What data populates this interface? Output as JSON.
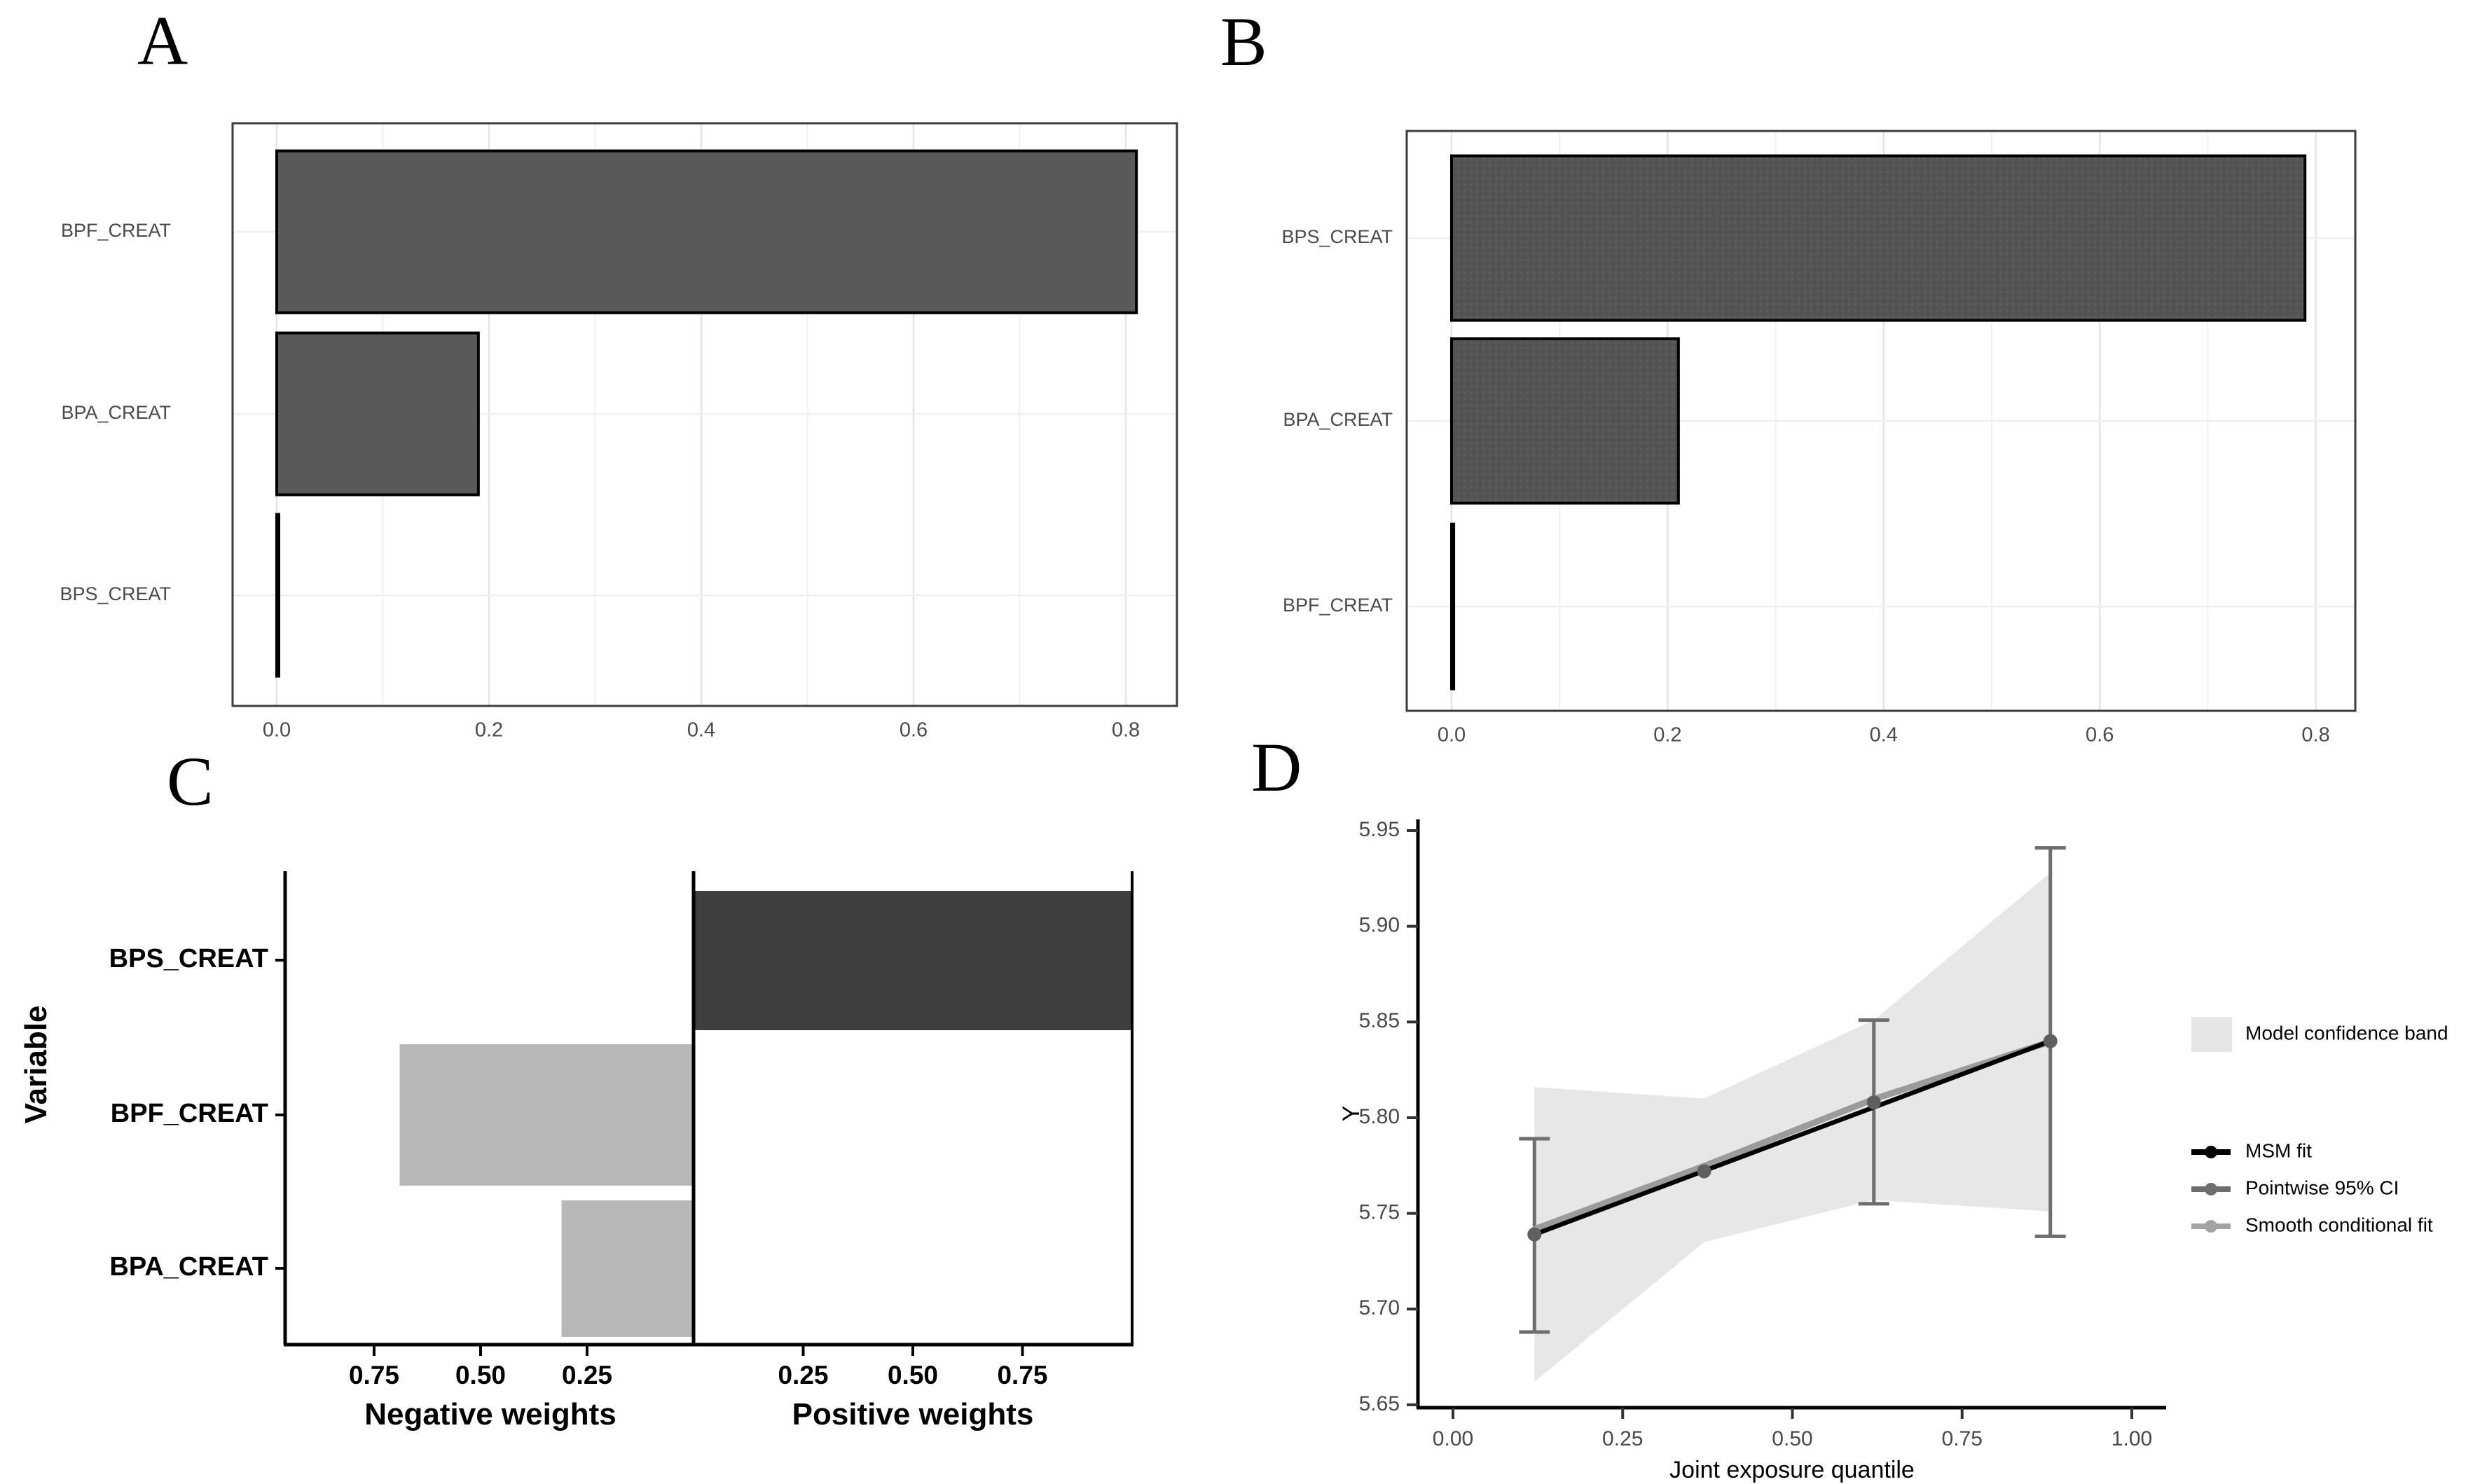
{
  "chart_data": [
    {
      "letter": "A",
      "type": "bar",
      "orientation": "horizontal",
      "categories": [
        "BPF_CREAT",
        "BPA_CREAT",
        "BPS_CREAT"
      ],
      "values": [
        0.81,
        0.19,
        0.002
      ],
      "xtick_labels": [
        "0.0",
        "0.2",
        "0.4",
        "0.6",
        "0.8"
      ],
      "xtick_values": [
        0.0,
        0.2,
        0.4,
        0.6,
        0.8
      ],
      "xlim": [
        -0.04,
        0.85
      ],
      "grid": true,
      "colors": {
        "bar_fill": "#595959",
        "bar_stroke": "#000000",
        "grid_major": "#e4e4e4",
        "grid_minor": "#f0f0f0",
        "border": "#3c3c3c",
        "label": "#4a4a4a"
      }
    },
    {
      "letter": "B",
      "type": "bar",
      "orientation": "horizontal",
      "categories": [
        "BPS_CREAT",
        "BPA_CREAT",
        "BPF_CREAT"
      ],
      "values": [
        0.79,
        0.21,
        0.002
      ],
      "xtick_labels": [
        "0.0",
        "0.2",
        "0.4",
        "0.6",
        "0.8"
      ],
      "xtick_values": [
        0.0,
        0.2,
        0.4,
        0.6,
        0.8
      ],
      "xlim": [
        -0.04,
        0.85
      ],
      "grid": true,
      "textured": true,
      "colors": {
        "bar_fill": "#545454",
        "bar_stroke": "#000000",
        "grid_major": "#e4e4e4",
        "grid_minor": "#f0f0f0",
        "border": "#3c3c3c",
        "label": "#4a4a4a"
      }
    },
    {
      "letter": "C",
      "type": "diverging-bar",
      "ylabel": "Variable",
      "categories": [
        "BPS_CREAT",
        "BPF_CREAT",
        "BPA_CREAT"
      ],
      "positive_values": [
        1.0,
        0,
        0
      ],
      "negative_values": [
        0,
        0.69,
        0.31
      ],
      "neg_tick_labels": [
        "0.75",
        "0.50",
        "0.25"
      ],
      "neg_tick_values": [
        0.75,
        0.5,
        0.25
      ],
      "pos_tick_labels": [
        "0.25",
        "0.50",
        "0.75"
      ],
      "pos_tick_values": [
        0.25,
        0.5,
        0.75
      ],
      "xlabel_negative": "Negative weights",
      "xlabel_positive": "Positive weights",
      "colors": {
        "positive_fill": "#3f3f3f",
        "negative_fill": "#b8b8b8",
        "axis": "#000000",
        "label": "#000000"
      }
    },
    {
      "letter": "D",
      "type": "line",
      "xlabel": "Joint exposure quantile",
      "ylabel": "Y",
      "xtick_labels": [
        "0.00",
        "0.25",
        "0.50",
        "0.75",
        "1.00"
      ],
      "xtick_values": [
        0.0,
        0.25,
        0.5,
        0.75,
        1.0
      ],
      "ytick_labels": [
        "5.65",
        "5.70",
        "5.75",
        "5.80",
        "5.85",
        "5.90",
        "5.95"
      ],
      "ytick_values": [
        5.65,
        5.7,
        5.75,
        5.8,
        5.85,
        5.9,
        5.95
      ],
      "ylim": [
        5.65,
        5.95
      ],
      "xlim": [
        0.0,
        1.0
      ],
      "points": {
        "x": [
          0.12,
          0.37,
          0.62,
          0.88
        ],
        "y": [
          5.739,
          5.772,
          5.808,
          5.84
        ]
      },
      "error_bars": [
        {
          "x": 0.12,
          "lo": 5.688,
          "hi": 5.789
        },
        {
          "x": 0.62,
          "lo": 5.755,
          "hi": 5.851
        },
        {
          "x": 0.88,
          "lo": 5.738,
          "hi": 5.941
        }
      ],
      "msm_fit": {
        "x": [
          0.12,
          0.88
        ],
        "y": [
          5.739,
          5.84
        ]
      },
      "smooth_fit": {
        "x": [
          0.12,
          0.37,
          0.62,
          0.88
        ],
        "y": [
          5.741,
          5.774,
          5.809,
          5.839
        ]
      },
      "band": {
        "x": [
          0.12,
          0.37,
          0.62,
          0.88
        ],
        "upper": [
          5.816,
          5.81,
          5.851,
          5.928
        ],
        "lower": [
          5.662,
          5.735,
          5.757,
          5.751
        ]
      },
      "legend": [
        {
          "label": "Model confidence band",
          "swatch": "area",
          "color": "#e6e6e6"
        },
        {
          "label": "MSM fit",
          "swatch": "line",
          "color": "#000000"
        },
        {
          "label": "Pointwise 95% CI",
          "swatch": "line",
          "color": "#6e6e6e"
        },
        {
          "label": "Smooth conditional fit",
          "swatch": "line",
          "color": "#a3a3a3"
        }
      ],
      "colors": {
        "band": "#e7e7e7",
        "msm_line": "#000000",
        "smooth_line": "#9b9b9b",
        "error_bar": "#6e6e6e",
        "point": "#5f5f5f",
        "axis": "#000000",
        "tick_label": "#4a4a4a",
        "axis_title": "#000000"
      }
    }
  ]
}
